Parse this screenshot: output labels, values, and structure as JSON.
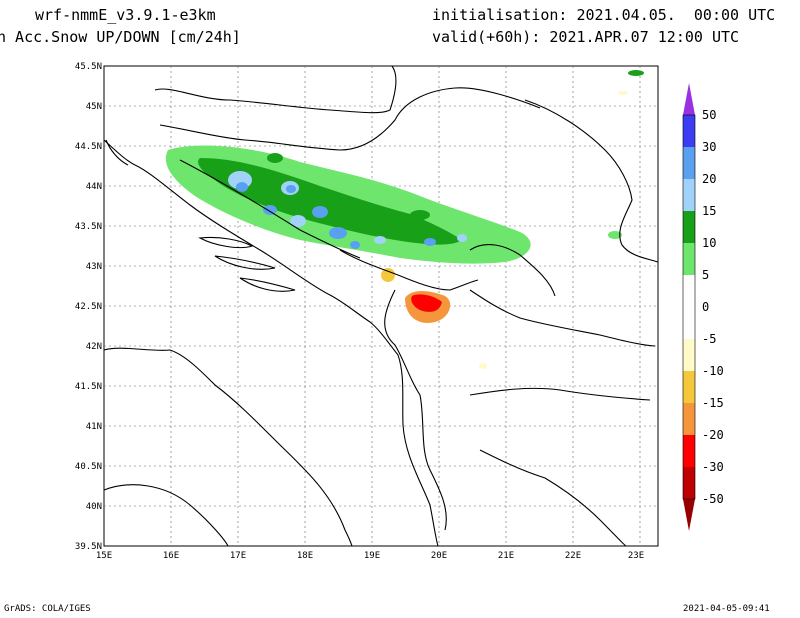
{
  "header": {
    "model": "wrf-nmmE_v3.9.1-e3km",
    "field": "n Acc.Snow UP/DOWN [cm/24h]",
    "init": "initialisation: 2021.04.05.  00:00 UTC",
    "valid": "valid(+60h): 2021.APR.07 12:00 UTC"
  },
  "footer": {
    "credit": "GrADS: COLA/IGES",
    "timestamp": "2021-04-05-09:41"
  },
  "map": {
    "lat_ticks": [
      "45.5N",
      "45N",
      "44.5N",
      "44N",
      "43.5N",
      "43N",
      "42.5N",
      "42N",
      "41.5N",
      "41N",
      "40.5N",
      "40N",
      "39.5N"
    ],
    "lon_ticks": [
      "15E",
      "16E",
      "17E",
      "18E",
      "19E",
      "20E",
      "21E",
      "22E",
      "23E"
    ],
    "colors": {
      "land_border": "#000000",
      "grid": "#555555"
    }
  },
  "legend": {
    "items": [
      {
        "label": "50",
        "color": "#a040e0"
      },
      {
        "label": "30",
        "color": "#3c3cf0"
      },
      {
        "label": "20",
        "color": "#5aa0f0"
      },
      {
        "label": "15",
        "color": "#a0d2fa"
      },
      {
        "label": "10",
        "color": "#19a019"
      },
      {
        "label": "5",
        "color": "#6ee66e"
      },
      {
        "label": "0",
        "color": "#ffffff"
      },
      {
        "label": "-5",
        "color": "#ffffff"
      },
      {
        "label": "-10",
        "color": "#fffac8"
      },
      {
        "label": "-15",
        "color": "#f5c83c"
      },
      {
        "label": "-20",
        "color": "#f5963c"
      },
      {
        "label": "-30",
        "color": "#ff0000"
      },
      {
        "label": "-50",
        "color": "#c00000"
      }
    ],
    "top_arrow_color": "#9a30e0",
    "bottom_arrow_color": "#960000"
  }
}
